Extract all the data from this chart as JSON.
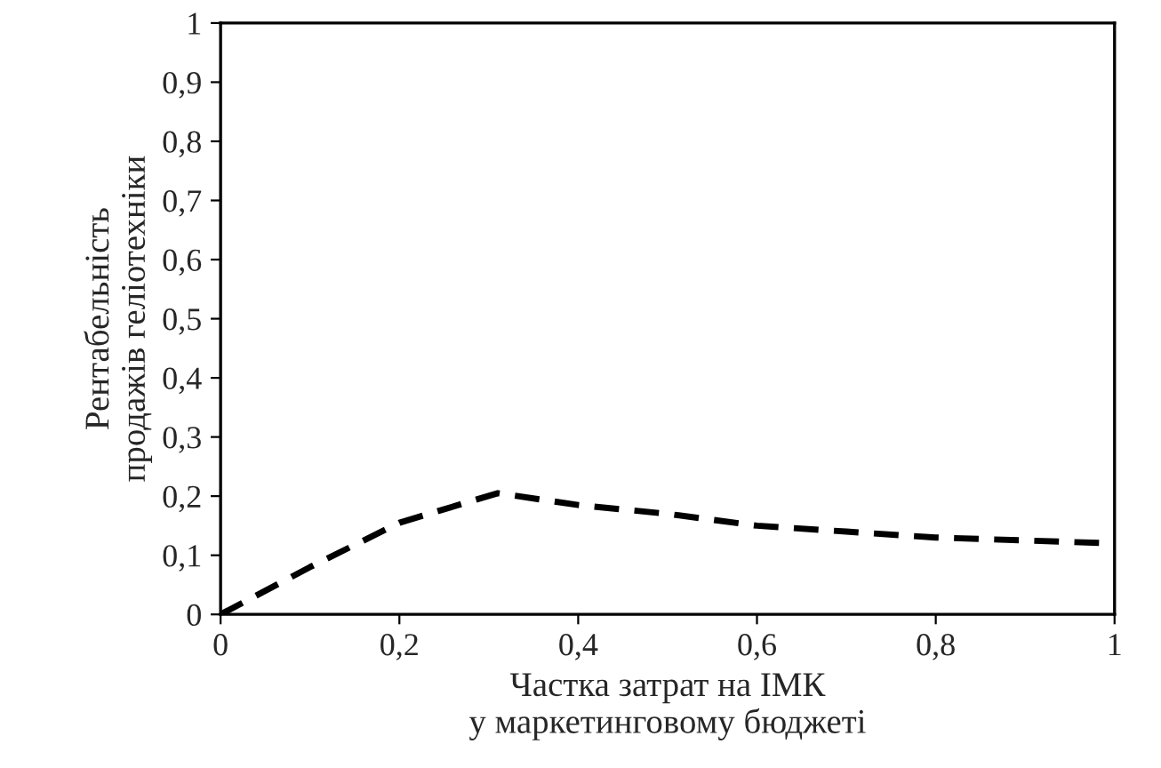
{
  "chart_data": {
    "type": "line",
    "xlabel": "Частка затрат на ІМК\nу маркетинговому бюджеті",
    "ylabel": "Рентабельність\nпродажів геліотехніки",
    "x": [
      0,
      0.1,
      0.2,
      0.31,
      0.4,
      0.5,
      0.6,
      0.7,
      0.8,
      0.9,
      1
    ],
    "series": [
      {
        "color": "#000000",
        "values": [
          0,
          0.08,
          0.155,
          0.205,
          0.185,
          0.17,
          0.15,
          0.14,
          0.13,
          0.125,
          0.12
        ]
      }
    ],
    "line_style": "dashed",
    "marker": "none",
    "grid": false,
    "xlim": [
      0,
      1
    ],
    "ylim": [
      0,
      1
    ],
    "xticks": [
      0,
      {
        "value": 0.2,
        "label": "0,2"
      },
      {
        "value": 0.4,
        "label": "0,4"
      },
      {
        "value": 0.6,
        "label": "0,6"
      },
      {
        "value": 0.8,
        "label": "0,8"
      },
      1
    ],
    "yticks": [
      0,
      {
        "value": 0.1,
        "label": "0,1"
      },
      {
        "value": 0.2,
        "label": "0,2"
      },
      {
        "value": 0.3,
        "label": "0,3"
      },
      {
        "value": 0.4,
        "label": "0,4"
      },
      {
        "value": 0.5,
        "label": "0,5"
      },
      {
        "value": 0.6,
        "label": "0,6"
      },
      {
        "value": 0.7,
        "label": "0,7"
      },
      {
        "value": 0.8,
        "label": "0,8"
      },
      {
        "value": 0.9,
        "label": "0,9"
      },
      1
    ]
  }
}
